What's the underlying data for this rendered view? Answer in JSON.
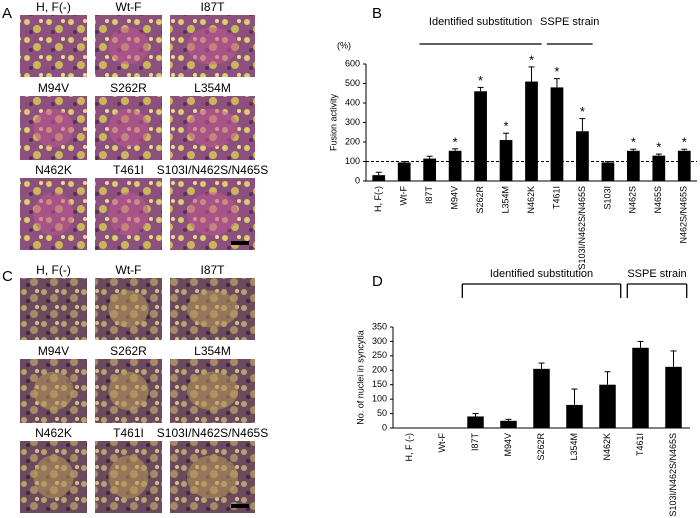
{
  "panel_a": {
    "label": "A",
    "images": [
      "H, F(-)",
      "Wt-F",
      "I87T",
      "M94V",
      "S262R",
      "L354M",
      "N462K",
      "T461I",
      "S103I/N462S/N465S"
    ]
  },
  "panel_c": {
    "label": "C",
    "images": [
      "H, F(-)",
      "Wt-F",
      "I87T",
      "M94V",
      "S262R",
      "L354M",
      "N462K",
      "T461I",
      "S103I/N462S/N465S"
    ]
  },
  "chart_data": [
    {
      "type": "bar",
      "panel": "B",
      "ylabel": "Fusion activity",
      "y_unit": "(%)",
      "categories": [
        "H, F(-)",
        "Wt-F",
        "I87T",
        "M94V",
        "S262R",
        "L354M",
        "N462K",
        "T461I",
        "S103I/N462S/N465S",
        "S103I",
        "N462S",
        "N465S",
        "N462S/N465S"
      ],
      "values": [
        30,
        95,
        115,
        155,
        460,
        210,
        510,
        480,
        255,
        95,
        155,
        130,
        155
      ],
      "errors": [
        15,
        5,
        12,
        10,
        20,
        35,
        75,
        45,
        65,
        5,
        8,
        8,
        8
      ],
      "significance": [
        null,
        null,
        null,
        "*",
        "*",
        "*",
        "*",
        "*",
        "*",
        null,
        "*",
        "*",
        "*"
      ],
      "reference_line": 100,
      "annotations": [
        "Identified substitution",
        "SSPE strain"
      ],
      "color": "#000000",
      "ylim": [
        0,
        600
      ],
      "yticks": [
        0,
        100,
        200,
        300,
        400,
        500,
        600
      ]
    },
    {
      "type": "bar",
      "panel": "D",
      "ylabel": "No. of nuclei in syncytia",
      "categories": [
        "H, F (-)",
        "Wt-F",
        "I87T",
        "M94V",
        "S262R",
        "L354M",
        "N462K",
        "T461I",
        "S103I/N462S/N465S"
      ],
      "values": [
        0,
        0,
        40,
        25,
        205,
        80,
        150,
        278,
        212
      ],
      "errors": [
        0,
        0,
        10,
        5,
        20,
        55,
        45,
        22,
        55
      ],
      "annotations": [
        "Identified substitution",
        "SSPE strain"
      ],
      "color": "#000000",
      "ylim": [
        0,
        350
      ],
      "yticks": [
        0,
        50,
        100,
        150,
        200,
        250,
        300,
        350
      ]
    }
  ]
}
